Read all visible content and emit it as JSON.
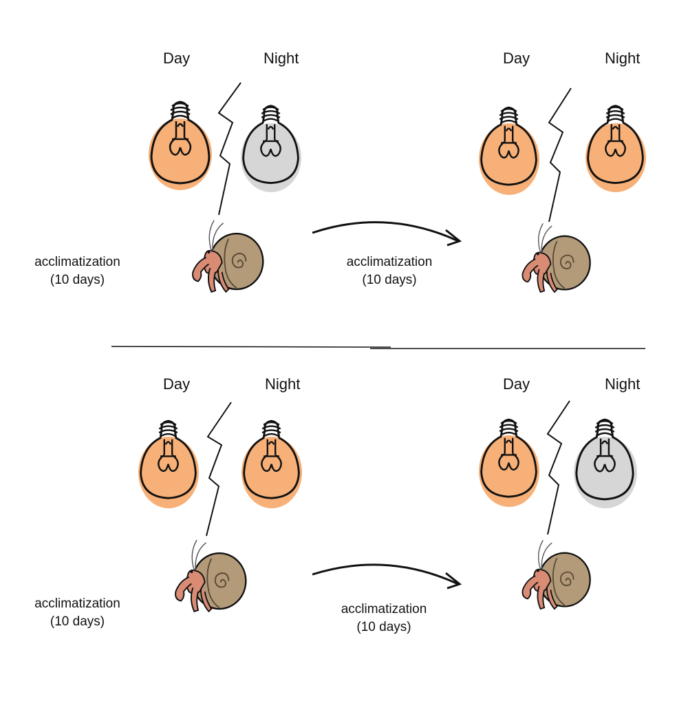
{
  "panels": [
    {
      "left": {
        "day_label": "Day",
        "night_label": "Night",
        "day_light": "on",
        "night_light": "off"
      },
      "left_note": [
        "acclimatization",
        "(10 days)"
      ],
      "transition_note": [
        "acclimatization",
        "(10 days)"
      ],
      "right": {
        "day_label": "Day",
        "night_label": "Night",
        "day_light": "on",
        "night_light": "on"
      }
    },
    {
      "left": {
        "day_label": "Day",
        "night_label": "Night",
        "day_light": "on",
        "night_light": "on"
      },
      "left_note": [
        "acclimatization",
        "(10 days)"
      ],
      "transition_note": [
        "acclimatization",
        "(10 days)"
      ],
      "right": {
        "day_label": "Day",
        "night_label": "Night",
        "day_light": "on",
        "night_light": "off"
      }
    }
  ],
  "colors": {
    "bulb_on": "#f6a25f",
    "bulb_off": "#cfcfcf",
    "shell": "#b39b7a",
    "crab": "#d98b74",
    "ink": "#111111"
  },
  "icons": [
    "lightbulb-icon",
    "lightning-divider-icon",
    "hermit-crab-icon",
    "curved-arrow-icon"
  ]
}
